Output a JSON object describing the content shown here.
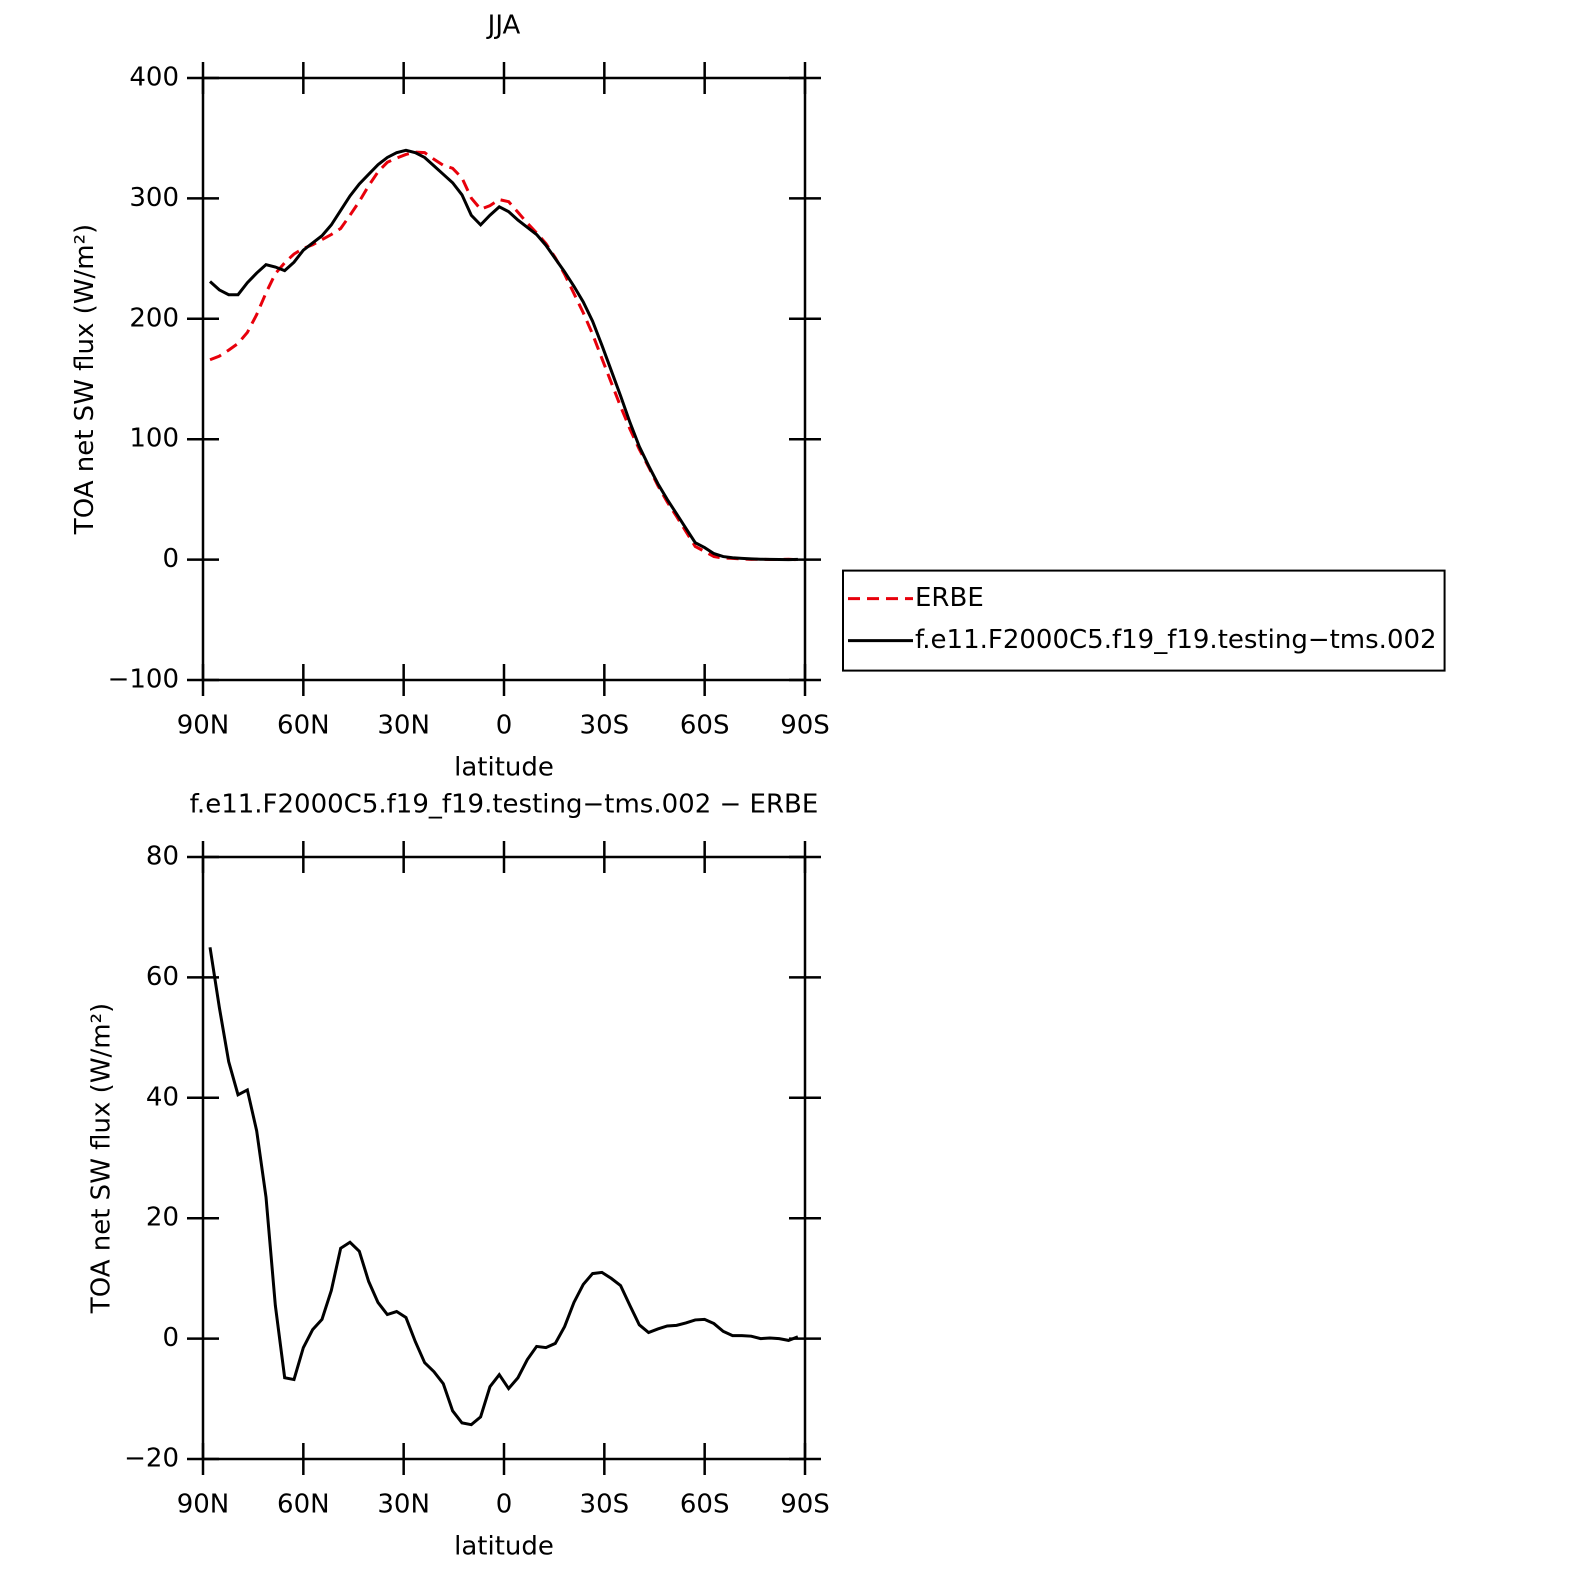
{
  "chart_data": [
    {
      "type": "line",
      "title": "JJA",
      "xlabel": "latitude",
      "ylabel": "TOA net SW flux (W/m²)",
      "x": [
        87.9,
        85.11,
        82.32,
        79.53,
        76.74,
        73.95,
        71.16,
        68.37,
        65.58,
        62.79,
        60,
        57.21,
        54.42,
        51.63,
        48.84,
        46.05,
        43.26,
        40.47,
        37.68,
        34.89,
        32.1,
        29.31,
        26.52,
        23.73,
        20.94,
        18.15,
        15.36,
        12.57,
        9.78,
        6.99,
        4.2,
        1.41,
        -1.38,
        -4.17,
        -6.96,
        -9.75,
        -12.54,
        -15.33,
        -18.12,
        -20.91,
        -23.7,
        -26.49,
        -29.28,
        -32.07,
        -34.86,
        -37.65,
        -40.44,
        -43.23,
        -46.02,
        -48.81,
        -51.6,
        -54.39,
        -57.18,
        -59.97,
        -62.76,
        -65.55,
        -68.34,
        -71.13,
        -73.92,
        -76.71,
        -79.5,
        -82.29,
        -85.08,
        -87.87
      ],
      "series": [
        {
          "name": "ERBE",
          "color": "#e8000b",
          "linestyle": "dashed",
          "values": [
            166,
            169,
            174,
            179.5,
            188.7,
            203.5,
            221.5,
            237.5,
            246.5,
            253.8,
            258.5,
            261.5,
            265.8,
            270,
            275,
            286,
            297.5,
            310.5,
            322,
            330,
            333.5,
            336.5,
            338.5,
            338,
            332.5,
            327.5,
            325,
            317,
            300.3,
            291,
            294,
            299,
            297.3,
            288.5,
            279.5,
            271.3,
            262.5,
            250.8,
            237,
            221,
            205,
            187.2,
            167,
            147,
            127.2,
            108.5,
            91.7,
            77,
            61.4,
            47.9,
            35.8,
            23.4,
            10.9,
            6.8,
            2.5,
            1.3,
            1,
            0.5,
            0.2,
            0.3,
            0.1,
            0.1,
            0.3,
            -0.1
          ]
        },
        {
          "name": "f.e11.F2000C5.f19_f19.testing−tms.002",
          "color": "#000000",
          "linestyle": "solid",
          "values": [
            231,
            224,
            220,
            220,
            230,
            238,
            245,
            243,
            240,
            247,
            257,
            263,
            269,
            278,
            290,
            302,
            312,
            320,
            328,
            334,
            338,
            340,
            338,
            334,
            327,
            320,
            313,
            303,
            286,
            278,
            286,
            293,
            289,
            282,
            276,
            270,
            261,
            250,
            239,
            227,
            214,
            198,
            178,
            157,
            136,
            114,
            94,
            78,
            63,
            50,
            38,
            26,
            14,
            10,
            5,
            2.5,
            1.5,
            1,
            0.6,
            0.3,
            0.2,
            0.1,
            0,
            0.2
          ]
        }
      ],
      "xlim": [
        90,
        -90
      ],
      "xticks": [
        {
          "value": 90,
          "label": "90N"
        },
        {
          "value": 60,
          "label": "60N"
        },
        {
          "value": 30,
          "label": "30N"
        },
        0,
        {
          "value": -30,
          "label": "30S"
        },
        {
          "value": -60,
          "label": "60S"
        },
        {
          "value": -90,
          "label": "90S"
        }
      ],
      "ylim": [
        -100,
        400
      ],
      "yticks": [
        {
          "value": -100,
          "label": "−100"
        },
        0,
        100,
        200,
        300,
        400
      ],
      "legend": "right"
    },
    {
      "type": "line",
      "title": "f.e11.F2000C5.f19_f19.testing−tms.002 − ERBE",
      "xlabel": "latitude",
      "ylabel": "TOA net SW flux (W/m²)",
      "x": [
        87.9,
        85.11,
        82.32,
        79.53,
        76.74,
        73.95,
        71.16,
        68.37,
        65.58,
        62.79,
        60,
        57.21,
        54.42,
        51.63,
        48.84,
        46.05,
        43.26,
        40.47,
        37.68,
        34.89,
        32.1,
        29.31,
        26.52,
        23.73,
        20.94,
        18.15,
        15.36,
        12.57,
        9.78,
        6.99,
        4.2,
        1.41,
        -1.38,
        -4.17,
        -6.96,
        -9.75,
        -12.54,
        -15.33,
        -18.12,
        -20.91,
        -23.7,
        -26.49,
        -29.28,
        -32.07,
        -34.86,
        -37.65,
        -40.44,
        -43.23,
        -46.02,
        -48.81,
        -51.6,
        -54.39,
        -57.18,
        -59.97,
        -62.76,
        -65.55,
        -68.34,
        -71.13,
        -73.92,
        -76.71,
        -79.5,
        -82.29,
        -85.08,
        -87.87
      ],
      "values": [
        65,
        55,
        46,
        40.5,
        41.3,
        34.5,
        23.5,
        5.5,
        -6.5,
        -6.8,
        -1.5,
        1.5,
        3.2,
        8,
        15,
        16,
        14.5,
        9.5,
        6,
        4,
        4.5,
        3.5,
        -0.5,
        -4,
        -5.5,
        -7.5,
        -12,
        -14,
        -14.3,
        -13,
        -8,
        -6,
        -8.3,
        -6.5,
        -3.5,
        -1.3,
        -1.5,
        -0.8,
        2,
        6,
        9,
        10.8,
        11,
        10,
        8.8,
        5.5,
        2.3,
        1,
        1.6,
        2.1,
        2.2,
        2.6,
        3.1,
        3.2,
        2.5,
        1.2,
        0.5,
        0.5,
        0.4,
        0,
        0.1,
        0,
        -0.3,
        0.3
      ],
      "color": "#000000",
      "xlim": [
        90,
        -90
      ],
      "xticks": [
        {
          "value": 90,
          "label": "90N"
        },
        {
          "value": 60,
          "label": "60N"
        },
        {
          "value": 30,
          "label": "30N"
        },
        0,
        {
          "value": -30,
          "label": "30S"
        },
        {
          "value": -60,
          "label": "60S"
        },
        {
          "value": -90,
          "label": "90S"
        }
      ],
      "ylim": [
        -20,
        80
      ],
      "yticks": [
        {
          "value": -20,
          "label": "−20"
        },
        0,
        20,
        40,
        60,
        80
      ]
    }
  ]
}
